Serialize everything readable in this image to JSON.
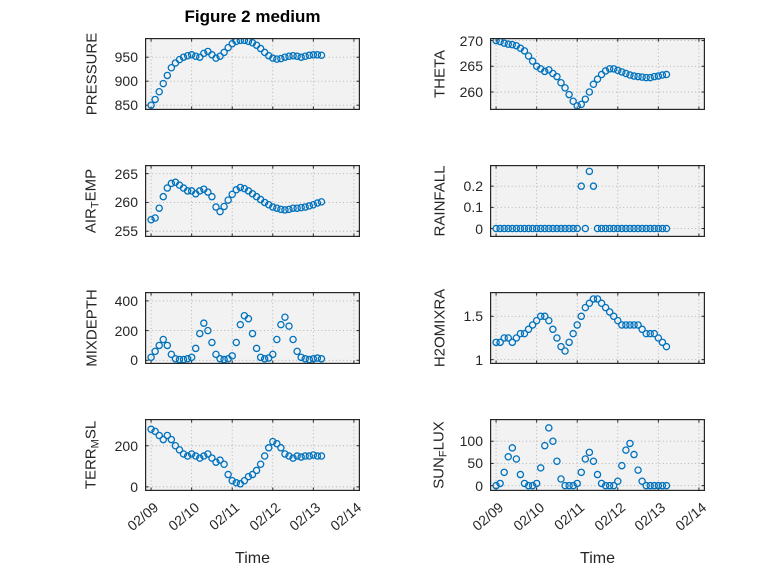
{
  "title": "Figure 2 medium",
  "xlabel": "Time",
  "colors": {
    "marker": "#0072BD",
    "grid": "#aeaeae",
    "axes_bg": "#f2f2f2",
    "axis": "#262626"
  },
  "chart_data": {
    "type": "scatter",
    "title": "Figure 2 medium",
    "xlabel": "Time",
    "legend": null,
    "grid": true,
    "x_tick_labels": [
      "02/09",
      "02/10",
      "02/11",
      "02/12",
      "02/13",
      "02/14"
    ],
    "x_tick_values": [
      0,
      1,
      2,
      3,
      4,
      5
    ],
    "xlim": [
      -0.15,
      5.15
    ],
    "x": [
      0,
      0.1,
      0.2,
      0.3,
      0.4,
      0.5,
      0.6,
      0.7,
      0.8,
      0.9,
      1,
      1.1,
      1.2,
      1.3,
      1.4,
      1.5,
      1.6,
      1.7,
      1.8,
      1.9,
      2,
      2.1,
      2.2,
      2.3,
      2.4,
      2.5,
      2.6,
      2.7,
      2.8,
      2.9,
      3,
      3.1,
      3.2,
      3.3,
      3.4,
      3.5,
      3.6,
      3.7,
      3.8,
      3.9,
      4,
      4.1,
      4.2
    ],
    "subplots": [
      {
        "name": "pressure",
        "ylabel": "PRESSURE",
        "ylabel_parts": [
          {
            "t": "PRESSURE",
            "sub": false
          }
        ],
        "yticks": [
          850,
          900,
          950
        ],
        "ylim": [
          840,
          990
        ],
        "y": [
          850,
          862,
          878,
          895,
          912,
          928,
          938,
          945,
          950,
          953,
          955,
          952,
          950,
          958,
          962,
          955,
          948,
          952,
          960,
          970,
          978,
          983,
          985,
          985,
          983,
          980,
          975,
          968,
          960,
          953,
          948,
          946,
          947,
          950,
          952,
          953,
          952,
          950,
          952,
          954,
          955,
          955,
          954
        ]
      },
      {
        "name": "theta",
        "ylabel": "THETA",
        "ylabel_parts": [
          {
            "t": "THETA",
            "sub": false
          }
        ],
        "yticks": [
          260,
          265,
          270
        ],
        "ylim": [
          256.5,
          270.5
        ],
        "y": [
          270,
          269.8,
          269.5,
          269.3,
          269.2,
          269,
          268.5,
          268,
          267,
          266,
          265,
          264.5,
          264,
          264.3,
          263.6,
          263,
          261.8,
          260.8,
          259.5,
          258.2,
          257.3,
          257.6,
          258.6,
          260,
          261.5,
          262.5,
          263.4,
          264.1,
          264.5,
          264.5,
          264.2,
          263.9,
          263.6,
          263.3,
          263.1,
          263,
          262.9,
          262.8,
          262.8,
          263,
          263.1,
          263.3,
          263.4
        ]
      },
      {
        "name": "air-temp",
        "ylabel": "AIR_TEMP",
        "ylabel_parts": [
          {
            "t": "AIR",
            "sub": false
          },
          {
            "t": "T",
            "sub": true
          },
          {
            "t": "EMP",
            "sub": false
          }
        ],
        "yticks": [
          255,
          260,
          265
        ],
        "ylim": [
          254,
          266.5
        ],
        "y": [
          257,
          257.3,
          259,
          261,
          262.5,
          263.3,
          263.5,
          263,
          262.5,
          262,
          262,
          261.5,
          262,
          262.3,
          261.8,
          261,
          259.2,
          258.4,
          259.3,
          260.4,
          261.4,
          262.2,
          262.6,
          262.4,
          262,
          261.5,
          261,
          260.5,
          260,
          259.6,
          259.2,
          259,
          258.8,
          258.7,
          258.8,
          259,
          259,
          259.1,
          259.2,
          259.4,
          259.6,
          259.9,
          260.1
        ]
      },
      {
        "name": "rainfall",
        "ylabel": "RAINFALL",
        "ylabel_parts": [
          {
            "t": "RAINFALL",
            "sub": false
          }
        ],
        "yticks": [
          0,
          0.1,
          0.2
        ],
        "ylim": [
          -0.04,
          0.3
        ],
        "y": [
          0,
          0,
          0,
          0,
          0,
          0,
          0,
          0,
          0,
          0,
          0,
          0,
          0,
          0,
          0,
          0,
          0,
          0,
          0,
          0,
          0,
          0.2,
          0,
          0.27,
          0.2,
          0,
          0,
          0,
          0,
          0,
          0,
          0,
          0,
          0,
          0,
          0,
          0,
          0,
          0,
          0,
          0,
          0,
          0
        ]
      },
      {
        "name": "mixdepth",
        "ylabel": "MIXDEPTH",
        "ylabel_parts": [
          {
            "t": "MIXDEPTH",
            "sub": false
          }
        ],
        "yticks": [
          0,
          200,
          400
        ],
        "ylim": [
          -25,
          460
        ],
        "y": [
          20,
          60,
          100,
          140,
          100,
          40,
          10,
          5,
          5,
          10,
          20,
          80,
          180,
          250,
          200,
          120,
          40,
          10,
          5,
          10,
          30,
          120,
          240,
          300,
          280,
          180,
          80,
          20,
          10,
          15,
          40,
          140,
          240,
          290,
          230,
          140,
          60,
          20,
          10,
          5,
          10,
          15,
          10
        ]
      },
      {
        "name": "h2omixra",
        "ylabel": "H2OMIXRA",
        "ylabel_parts": [
          {
            "t": "H2OMIXRA",
            "sub": false
          }
        ],
        "yticks": [
          1,
          1.5
        ],
        "ylim": [
          0.95,
          1.78
        ],
        "y": [
          1.2,
          1.2,
          1.25,
          1.25,
          1.2,
          1.25,
          1.3,
          1.3,
          1.35,
          1.4,
          1.45,
          1.5,
          1.5,
          1.45,
          1.35,
          1.25,
          1.15,
          1.1,
          1.2,
          1.3,
          1.4,
          1.5,
          1.6,
          1.65,
          1.7,
          1.7,
          1.65,
          1.6,
          1.55,
          1.5,
          1.45,
          1.4,
          1.4,
          1.4,
          1.4,
          1.4,
          1.35,
          1.3,
          1.3,
          1.3,
          1.25,
          1.2,
          1.15
        ]
      },
      {
        "name": "terr-msl",
        "ylabel": "TERR_MSL",
        "ylabel_parts": [
          {
            "t": "TERR",
            "sub": false
          },
          {
            "t": "M",
            "sub": true
          },
          {
            "t": "SL",
            "sub": false
          }
        ],
        "yticks": [
          0,
          200
        ],
        "ylim": [
          -20,
          330
        ],
        "y": [
          280,
          270,
          250,
          230,
          250,
          230,
          200,
          180,
          160,
          150,
          160,
          150,
          140,
          150,
          160,
          140,
          120,
          130,
          110,
          60,
          30,
          20,
          15,
          30,
          50,
          60,
          80,
          110,
          150,
          190,
          220,
          210,
          190,
          160,
          150,
          140,
          150,
          145,
          150,
          150,
          155,
          150,
          150
        ]
      },
      {
        "name": "sun-flux",
        "ylabel": "SUN_FLUX",
        "ylabel_parts": [
          {
            "t": "SUN",
            "sub": false
          },
          {
            "t": "F",
            "sub": true
          },
          {
            "t": "LUX",
            "sub": false
          }
        ],
        "yticks": [
          0,
          50,
          100
        ],
        "ylim": [
          -12,
          150
        ],
        "y": [
          0,
          5,
          30,
          65,
          85,
          60,
          25,
          5,
          0,
          0,
          5,
          40,
          90,
          130,
          100,
          55,
          15,
          0,
          0,
          0,
          5,
          30,
          60,
          75,
          55,
          25,
          5,
          0,
          0,
          0,
          10,
          45,
          80,
          95,
          70,
          35,
          10,
          0,
          0,
          0,
          0,
          0,
          0
        ]
      }
    ]
  }
}
